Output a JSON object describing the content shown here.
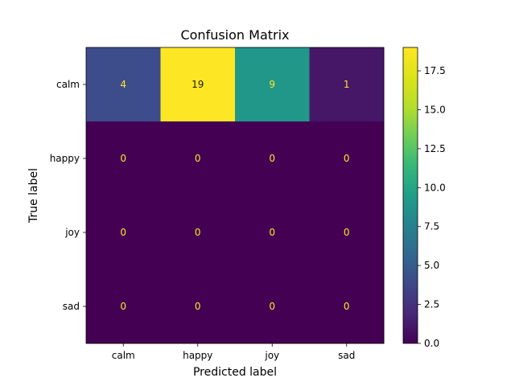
{
  "chart_data": {
    "type": "heatmap",
    "title": "Confusion Matrix",
    "xlabel": "Predicted label",
    "ylabel": "True label",
    "x_categories": [
      "calm",
      "happy",
      "joy",
      "sad"
    ],
    "y_categories": [
      "calm",
      "happy",
      "joy",
      "sad"
    ],
    "values": [
      [
        4,
        19,
        9,
        1
      ],
      [
        0,
        0,
        0,
        0
      ],
      [
        0,
        0,
        0,
        0
      ],
      [
        0,
        0,
        0,
        0
      ]
    ],
    "colormap": "viridis",
    "color_range": [
      0,
      19
    ],
    "colorbar": {
      "ticks": [
        0.0,
        2.5,
        5.0,
        7.5,
        10.0,
        12.5,
        15.0,
        17.5
      ],
      "tick_labels": [
        "0.0",
        "2.5",
        "5.0",
        "7.5",
        "10.0",
        "12.5",
        "15.0",
        "17.5"
      ]
    },
    "text_colors": {
      "on_dark": "#fde725",
      "on_light": "#1a1a1a"
    }
  }
}
